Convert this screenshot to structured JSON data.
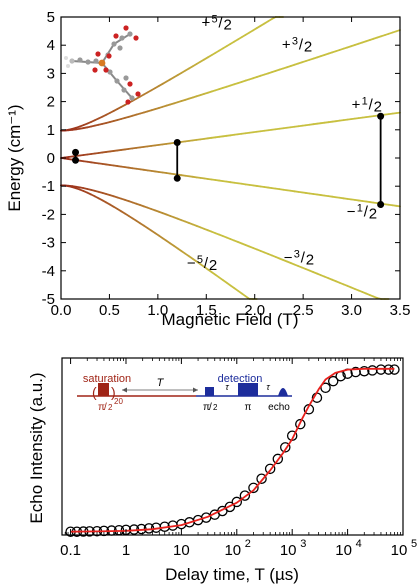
{
  "chart_data": [
    {
      "type": "line",
      "xlabel": "Magnetic Field (T)",
      "ylabel": "Energy (cm⁻¹)",
      "xlim": [
        0,
        3.5
      ],
      "ylim": [
        -5,
        5
      ],
      "x_ticks": [
        0.0,
        0.5,
        1.0,
        1.5,
        2.0,
        2.5,
        3.0,
        3.5
      ],
      "x_tick_labels": [
        "0.0",
        "0.5",
        "1.0",
        "1.5",
        "2.0",
        "2.5",
        "3.0",
        "3.5"
      ],
      "y_ticks": [
        5,
        4,
        3,
        2,
        1,
        0,
        -1,
        -2,
        -3,
        -4,
        -5
      ],
      "y_tick_labels": [
        "5",
        "4",
        "3",
        "2",
        "1",
        "0",
        "-1",
        "-2",
        "-3",
        "-4",
        "-5"
      ],
      "grid": false,
      "zero_field_energies": {
        "pm1_2": 0.0,
        "pm3_2": 0.97,
        "pm5_2": 0.97
      },
      "slopes_per_T": {
        "plus5_2": 2.11,
        "plus3_2": 1.15,
        "plus1_2": 0.46,
        "minus1_2": -0.49,
        "minus3_2": -1.43,
        "minus5_2": -2.55
      },
      "series_labels": [
        {
          "name": "+5/2",
          "sign": "+",
          "num": "5",
          "den": "2",
          "x": 1.45,
          "y": 4.62
        },
        {
          "name": "+3/2",
          "sign": "+",
          "num": "3",
          "den": "2",
          "x": 2.28,
          "y": 3.85
        },
        {
          "name": "+1/2",
          "sign": "+",
          "num": "1",
          "den": "2",
          "x": 3.0,
          "y": 1.72
        },
        {
          "name": "−1/2",
          "sign": "−",
          "num": "1",
          "den": "2",
          "x": 2.95,
          "y": -2.08
        },
        {
          "name": "−5/2",
          "sign": "−",
          "num": "5",
          "den": "2",
          "x": 1.3,
          "y": -3.9
        },
        {
          "name": "−3/2",
          "sign": "−",
          "num": "3",
          "den": "2",
          "x": 2.3,
          "y": -3.7
        }
      ],
      "transitions": [
        {
          "x": 0.15,
          "y1": 0.2,
          "y2": -0.08
        },
        {
          "x": 1.2,
          "y1": 0.55,
          "y2": -0.72
        },
        {
          "x": 3.3,
          "y1": 1.48,
          "y2": -1.65
        }
      ],
      "colors": {
        "dark": "#9b2a1a",
        "light": "#c8c040",
        "marker": "#000000"
      }
    },
    {
      "type": "scatter",
      "xlabel": "Delay time, T (µs)",
      "ylabel": "Echo Intensity (a.u.)",
      "x_scale": "log",
      "xlim": [
        0.07,
        100000
      ],
      "ylim": [
        0,
        1.07
      ],
      "x_ticks": [
        0.1,
        1,
        10,
        100,
        1000,
        10000,
        100000
      ],
      "x_tick_labels": [
        {
          "base": "0.1",
          "exp": ""
        },
        {
          "base": "1",
          "exp": ""
        },
        {
          "base": "10",
          "exp": ""
        },
        {
          "base": "10",
          "exp": "2"
        },
        {
          "base": "10",
          "exp": "3"
        },
        {
          "base": "10",
          "exp": "4"
        },
        {
          "base": "10",
          "exp": "5"
        }
      ],
      "grid": false,
      "series": [
        {
          "marker": "open-circle",
          "x": [
            0.1,
            0.13,
            0.17,
            0.22,
            0.3,
            0.4,
            0.55,
            0.75,
            1.0,
            1.4,
            1.9,
            2.6,
            3.5,
            5,
            7,
            10,
            14,
            20,
            28,
            40,
            55,
            75,
            100,
            140,
            200,
            280,
            400,
            550,
            750,
            1000,
            1400,
            2000,
            2800,
            4000,
            5500,
            7500,
            10000,
            14000,
            20000,
            28000,
            40000,
            55000,
            70000
          ],
          "y": [
            0.02,
            0.02,
            0.021,
            0.022,
            0.023,
            0.025,
            0.027,
            0.029,
            0.031,
            0.033,
            0.036,
            0.04,
            0.044,
            0.05,
            0.057,
            0.066,
            0.077,
            0.09,
            0.105,
            0.123,
            0.145,
            0.17,
            0.2,
            0.238,
            0.285,
            0.34,
            0.4,
            0.46,
            0.53,
            0.6,
            0.67,
            0.76,
            0.83,
            0.89,
            0.93,
            0.96,
            0.975,
            0.985,
            0.99,
            0.995,
            1.0,
            1.0,
            1.0
          ]
        },
        {
          "name": "fit",
          "marker": "line",
          "x": [
            0.1,
            0.3,
            1,
            3,
            10,
            30,
            100,
            200,
            400,
            700,
            1000,
            1500,
            2000,
            3000,
            4000,
            6000,
            10000,
            20000,
            40000,
            70000
          ],
          "y": [
            0.02,
            0.022,
            0.025,
            0.035,
            0.06,
            0.11,
            0.195,
            0.27,
            0.39,
            0.5,
            0.58,
            0.7,
            0.78,
            0.88,
            0.94,
            0.98,
            1.0,
            1.005,
            1.005,
            1.005
          ]
        }
      ],
      "inset": {
        "saturation_label": "saturation",
        "detection_label": "detection",
        "T_label": "T",
        "tau_label": "τ",
        "pi_label": "π",
        "echo_label": "echo",
        "sat_pulse_num": "π",
        "sat_pulse_den": "2",
        "sat_pulse_exp": "20",
        "det_pulse_num": "π",
        "det_pulse_den": "2",
        "sat_color": "#a02416",
        "det_color": "#1d2d9c"
      },
      "colors": {
        "fit": "#e8201c",
        "points": "#000000"
      }
    }
  ]
}
